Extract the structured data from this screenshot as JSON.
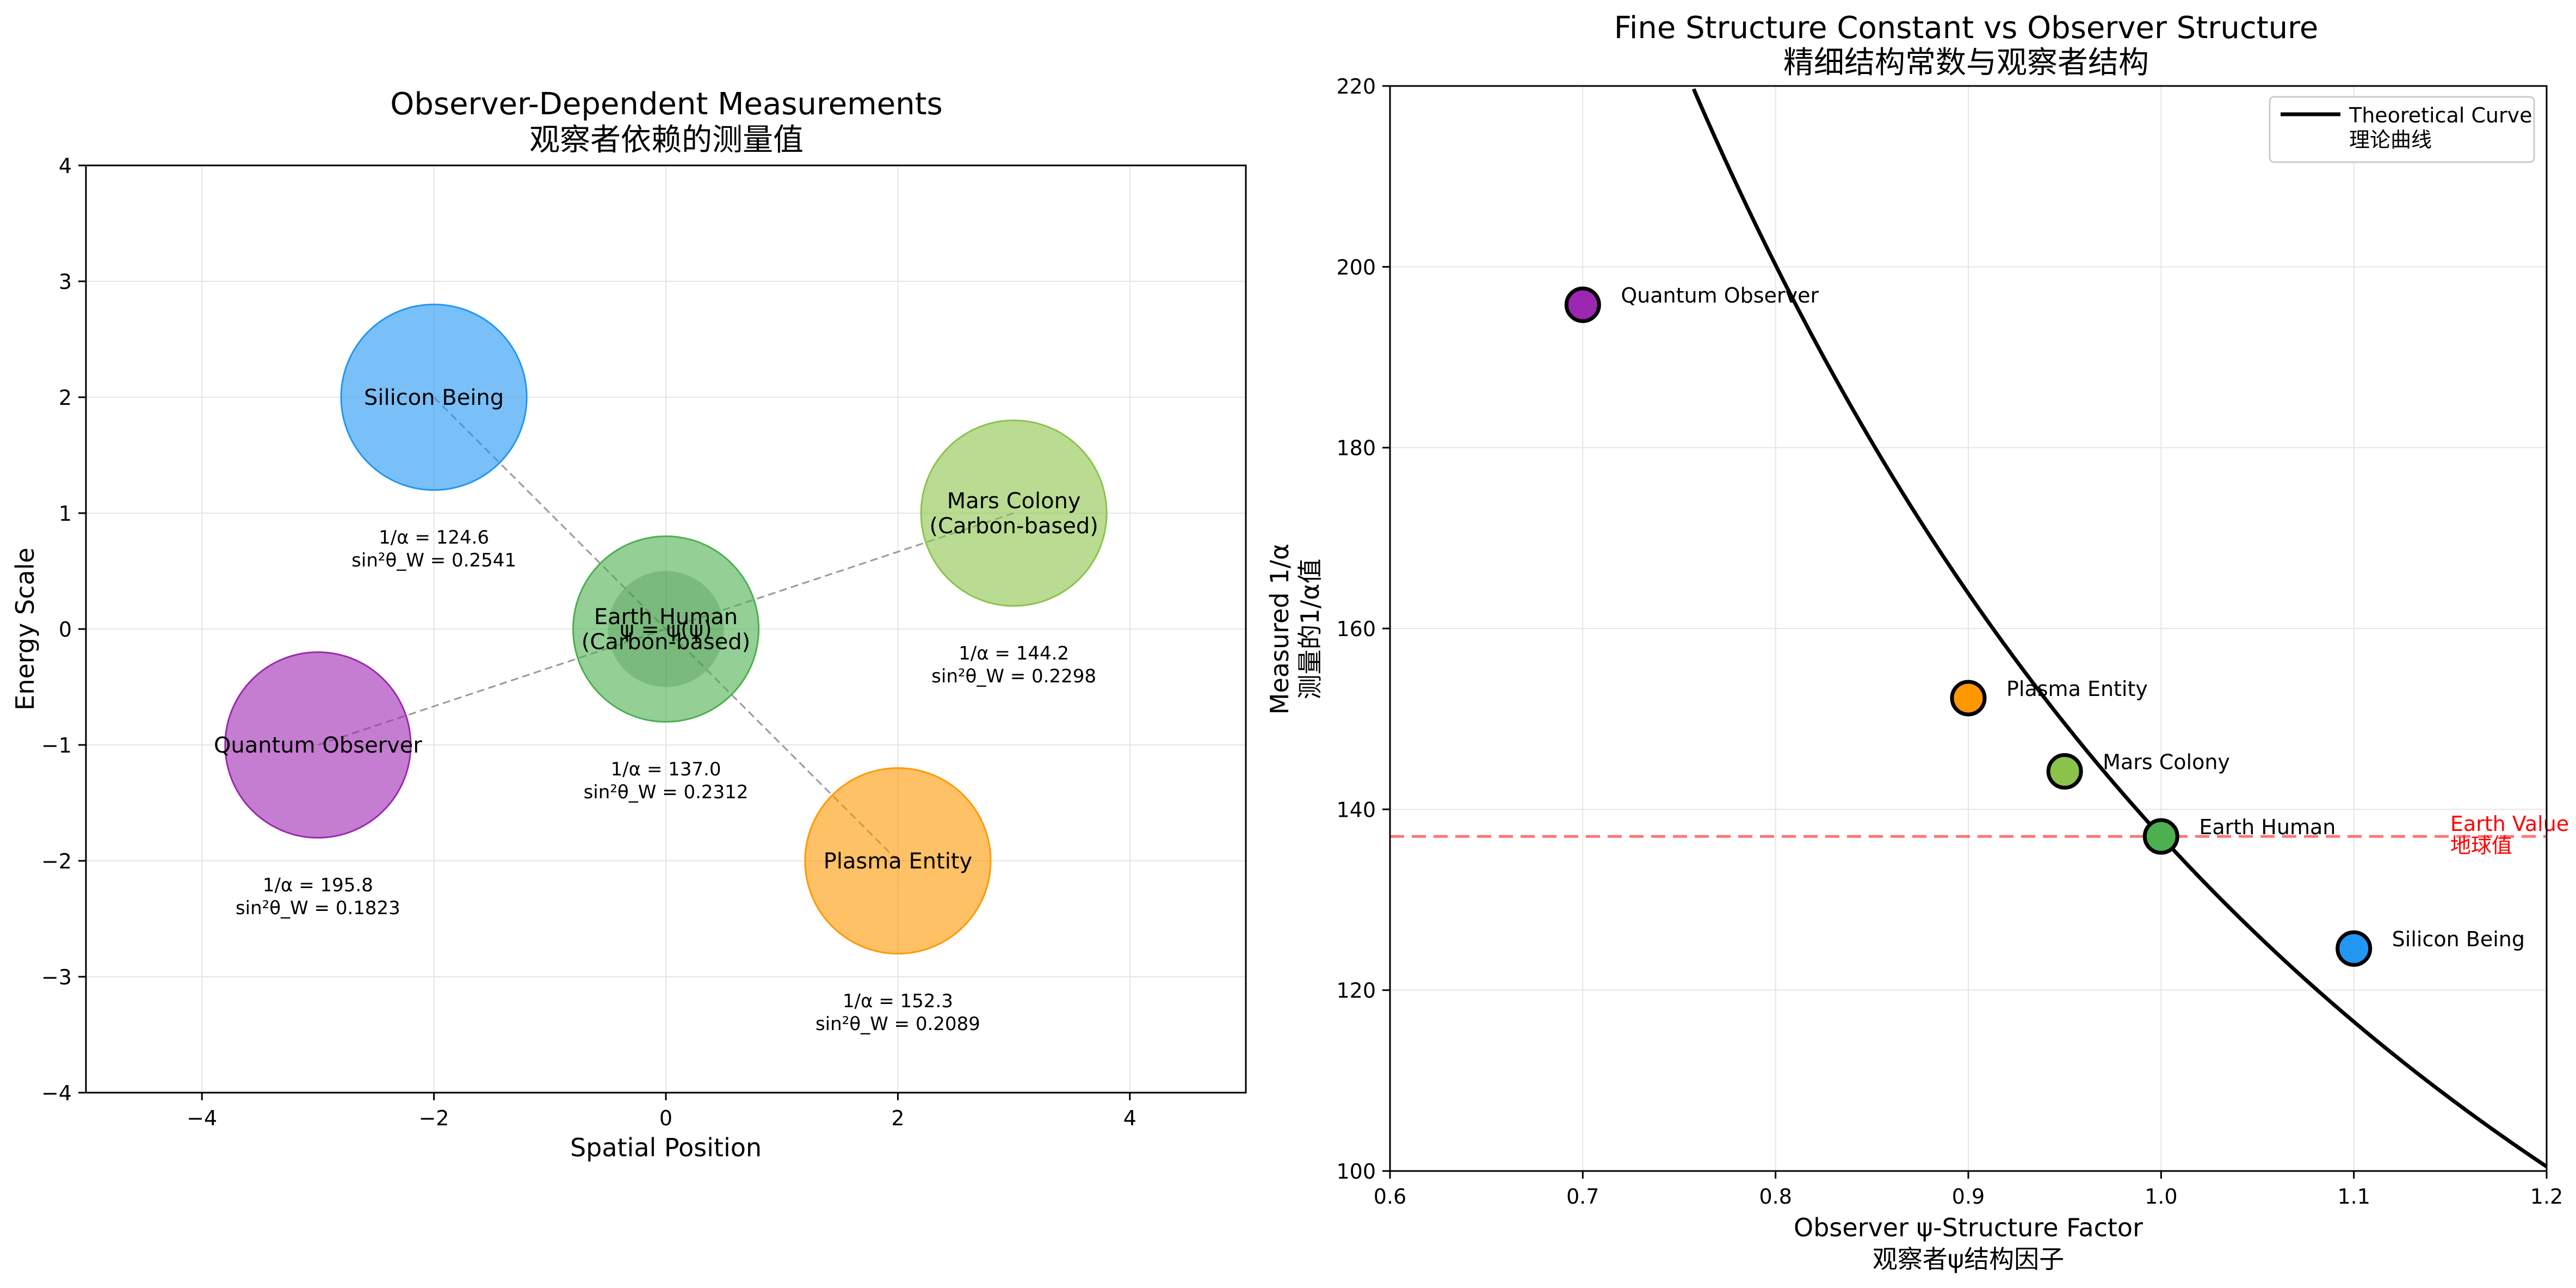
{
  "chart_data": [
    {
      "type": "scatter",
      "title": "Observer-Dependent Measurements",
      "subtitle": "观察者依赖的测量值",
      "xlabel": "Spatial Position",
      "ylabel": "Energy Scale",
      "xlim": [
        -5,
        5
      ],
      "ylim": [
        -4,
        4
      ],
      "xticks": [
        -4,
        -2,
        0,
        2,
        4
      ],
      "yticks": [
        -4,
        -3,
        -2,
        -1,
        0,
        1,
        2,
        3,
        4
      ],
      "grid": true,
      "center_label": "ψ = ψ(ψ)",
      "observers": [
        {
          "label": "Earth Human\n(Carbon-based)",
          "x": 0,
          "y": 0,
          "color": "#4caf50",
          "ann1": "1/α = 137.0",
          "ann2": "sin²θ_W = 0.2312"
        },
        {
          "label": "Silicon Being",
          "x": -2,
          "y": 2,
          "color": "#2196f3",
          "ann1": "1/α = 124.6",
          "ann2": "sin²θ_W = 0.2541"
        },
        {
          "label": "Plasma Entity",
          "x": 2,
          "y": -2,
          "color": "#ff9800",
          "ann1": "1/α = 152.3",
          "ann2": "sin²θ_W = 0.2089"
        },
        {
          "label": "Quantum Observer",
          "x": -3,
          "y": -1,
          "color": "#9c27b0",
          "ann1": "1/α = 195.8",
          "ann2": "sin²θ_W = 0.1823"
        },
        {
          "label": "Mars Colony\n(Carbon-based)",
          "x": 3,
          "y": 1,
          "color": "#8bc34a",
          "ann1": "1/α = 144.2",
          "ann2": "sin²θ_W = 0.2298"
        }
      ]
    },
    {
      "type": "scatter",
      "title": "Fine Structure Constant vs Observer Structure",
      "subtitle": "精细结构常数与观察者结构",
      "xlabel": "Observer ψ-Structure Factor",
      "xlabel2": "观察者ψ结构因子",
      "ylabel": "Measured 1/α",
      "ylabel2": "测量的1/α值",
      "xlim": [
        0.6,
        1.2
      ],
      "ylim": [
        100,
        220
      ],
      "xticks": [
        0.6,
        0.7,
        0.8,
        0.9,
        1.0,
        1.1,
        1.2
      ],
      "yticks": [
        100,
        120,
        140,
        160,
        180,
        200,
        220
      ],
      "grid": true,
      "legend_placement": "top-right",
      "curve": {
        "name": "Theoretical Curve",
        "name2": "理论曲线",
        "formula": "137 / x^1.7",
        "color": "#000000"
      },
      "reference_line": {
        "y": 137,
        "label": "Earth Value",
        "label2": "地球值",
        "color": "#ff0000"
      },
      "points": [
        {
          "name": "Quantum Observer",
          "x": 0.7,
          "y": 195.8,
          "color": "#9c27b0"
        },
        {
          "name": "Plasma Entity",
          "x": 0.9,
          "y": 152.3,
          "color": "#ff9800"
        },
        {
          "name": "Mars Colony",
          "x": 0.95,
          "y": 144.2,
          "color": "#8bc34a"
        },
        {
          "name": "Earth Human",
          "x": 1.0,
          "y": 137.0,
          "color": "#4caf50"
        },
        {
          "name": "Silicon Being",
          "x": 1.1,
          "y": 124.6,
          "color": "#2196f3"
        }
      ]
    }
  ]
}
